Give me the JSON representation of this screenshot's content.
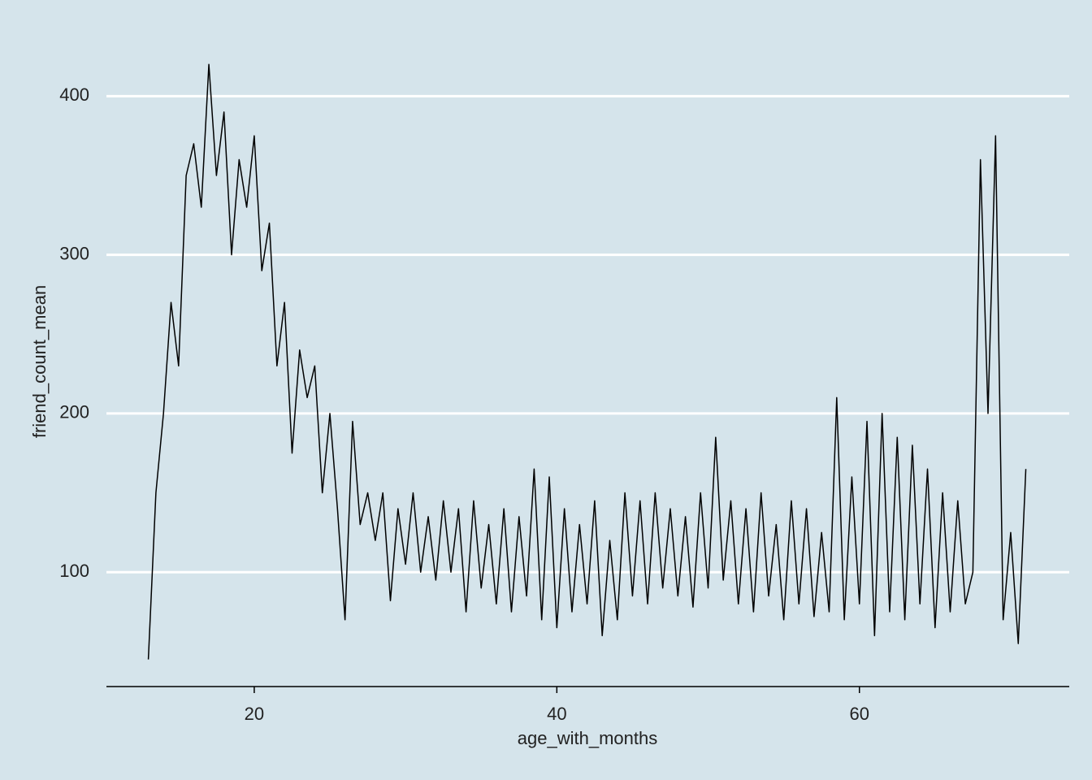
{
  "chart_data": {
    "type": "line",
    "x_label": "age_with_months",
    "y_label": "friend_count_mean",
    "x": [
      13,
      13.5,
      14,
      14.5,
      15,
      15.5,
      16,
      16.5,
      17,
      17.5,
      18,
      18.5,
      19,
      19.5,
      20,
      20.5,
      21,
      21.5,
      22,
      22.5,
      23,
      23.5,
      24,
      24.5,
      25,
      25.5,
      26,
      26.5,
      27,
      27.5,
      28,
      28.5,
      29,
      29.5,
      30,
      30.5,
      31,
      31.5,
      32,
      32.5,
      33,
      33.5,
      34,
      34.5,
      35,
      35.5,
      36,
      36.5,
      37,
      37.5,
      38,
      38.5,
      39,
      39.5,
      40,
      40.5,
      41,
      41.5,
      42,
      42.5,
      43,
      43.5,
      44,
      44.5,
      45,
      45.5,
      46,
      46.5,
      47,
      47.5,
      48,
      48.5,
      49,
      49.5,
      50,
      50.5,
      51,
      51.5,
      52,
      52.5,
      53,
      53.5,
      54,
      54.5,
      55,
      55.5,
      56,
      56.5,
      57,
      57.5,
      58,
      58.5,
      59,
      59.5,
      60,
      60.5,
      61,
      61.5,
      62,
      62.5,
      63,
      63.5,
      64,
      64.5,
      65,
      65.5,
      66,
      66.5,
      67,
      67.5,
      68,
      68.5,
      69,
      69.5,
      70,
      70.5,
      71
    ],
    "series": [
      {
        "color": "#000000",
        "values": [
          45,
          150,
          200,
          270,
          230,
          350,
          370,
          330,
          420,
          350,
          390,
          300,
          360,
          330,
          375,
          290,
          320,
          230,
          270,
          175,
          240,
          210,
          230,
          150,
          200,
          140,
          70,
          195,
          130,
          150,
          120,
          150,
          82,
          140,
          105,
          150,
          100,
          135,
          95,
          145,
          100,
          140,
          75,
          145,
          90,
          130,
          80,
          140,
          75,
          135,
          85,
          165,
          70,
          160,
          65,
          140,
          75,
          130,
          80,
          145,
          60,
          120,
          70,
          150,
          85,
          145,
          80,
          150,
          90,
          140,
          85,
          135,
          78,
          150,
          90,
          185,
          95,
          145,
          80,
          140,
          75,
          150,
          85,
          130,
          70,
          145,
          80,
          140,
          72,
          125,
          75,
          210,
          70,
          160,
          80,
          195,
          60,
          200,
          75,
          185,
          70,
          180,
          80,
          165,
          65,
          150,
          75,
          145,
          80,
          100,
          360,
          200,
          375,
          70,
          125,
          55,
          165
        ]
      }
    ],
    "xlim": [
      10.23,
      73.87
    ],
    "ylim": [
      27.9,
      435
    ],
    "xticks": [
      20,
      40,
      60
    ],
    "yticks": [
      100,
      200,
      300,
      400
    ],
    "grid": true
  }
}
